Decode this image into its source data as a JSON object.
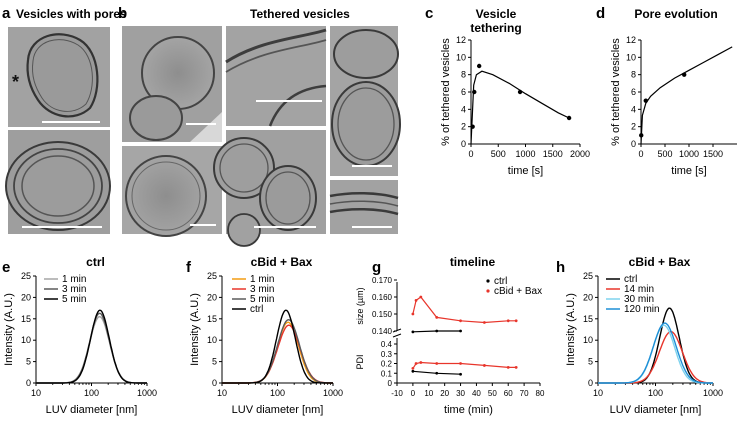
{
  "panels": {
    "a": {
      "label": "a",
      "title": "Vesicles with pores",
      "marker": "*"
    },
    "b": {
      "label": "b",
      "title": "Tethered vesicles"
    },
    "c": {
      "label": "c",
      "title_l1": "Vesicle",
      "title_l2": "tethering"
    },
    "d": {
      "label": "d",
      "title": "Pore evolution"
    },
    "e": {
      "label": "e"
    },
    "f": {
      "label": "f"
    },
    "g": {
      "label": "g"
    },
    "h": {
      "label": "h"
    }
  },
  "colors": {
    "black": "#000000",
    "dark_grey": "#5a5a5a",
    "light_grey": "#a6a6a6",
    "orange": "#f39c12",
    "red": "#e8352b",
    "light_blue": "#7fd3ee",
    "blue": "#1e8fd6",
    "micrograph": "#9b9b9b"
  },
  "chart_data": [
    {
      "id": "c",
      "type": "scatter",
      "title": "Vesicle tethering",
      "xlabel": "time [s]",
      "ylabel": "% of tethered vesicles",
      "xlim": [
        0,
        2000
      ],
      "ylim": [
        0,
        12
      ],
      "xticks": [
        0,
        500,
        1000,
        1500,
        2000
      ],
      "yticks": [
        0,
        2,
        4,
        6,
        8,
        10,
        12
      ],
      "points": {
        "x": [
          30,
          60,
          150,
          900,
          1800
        ],
        "y": [
          2,
          6,
          9,
          6,
          3
        ]
      },
      "fit_line": {
        "x": [
          0,
          50,
          100,
          200,
          400,
          700,
          1000,
          1300,
          1600,
          1800
        ],
        "y": [
          0,
          6.8,
          8.0,
          8.4,
          8.0,
          7.0,
          5.8,
          4.7,
          3.6,
          3.0
        ]
      }
    },
    {
      "id": "d",
      "type": "scatter",
      "title": "Pore evolution",
      "xlabel": "time [s]",
      "ylabel": "% of tethered vesicles",
      "xlim": [
        0,
        2000
      ],
      "ylim": [
        0,
        12
      ],
      "xticks": [
        0,
        500,
        1000,
        1500
      ],
      "yticks": [
        0,
        2,
        4,
        6,
        8,
        10,
        12
      ],
      "points": {
        "x": [
          5,
          100,
          900
        ],
        "y": [
          1,
          5,
          8
        ]
      },
      "fit_line": {
        "x": [
          0,
          30,
          100,
          200,
          400,
          700,
          1000,
          1300,
          1600,
          1900
        ],
        "y": [
          0,
          3.3,
          4.7,
          5.5,
          6.5,
          7.6,
          8.5,
          9.4,
          10.3,
          11.2
        ]
      }
    },
    {
      "id": "e",
      "type": "line",
      "title": "ctrl",
      "xlabel": "LUV diameter [nm]",
      "ylabel": "Intensity (A.U.)",
      "xscale": "log",
      "xlim": [
        10,
        1000
      ],
      "ylim": [
        0,
        25
      ],
      "xticks": [
        10,
        100,
        1000
      ],
      "yticks": [
        0,
        5,
        10,
        15,
        20,
        25
      ],
      "series": [
        {
          "name": "1 min",
          "color": "#a6a6a6",
          "mu": 140,
          "sigma": 0.18,
          "peak": 15.5
        },
        {
          "name": "3 min",
          "color": "#5a5a5a",
          "mu": 140,
          "sigma": 0.175,
          "peak": 16.3
        },
        {
          "name": "5 min",
          "color": "#000000",
          "mu": 142,
          "sigma": 0.17,
          "peak": 17.0
        }
      ]
    },
    {
      "id": "f",
      "type": "line",
      "title": "cBid + Bax",
      "xlabel": "LUV diameter [nm]",
      "ylabel": "Intensity (A.U.)",
      "xscale": "log",
      "xlim": [
        10,
        1000
      ],
      "ylim": [
        0,
        25
      ],
      "xticks": [
        10,
        100,
        1000
      ],
      "yticks": [
        0,
        5,
        10,
        15,
        20,
        25
      ],
      "series": [
        {
          "name": "1 min",
          "color": "#f39c12",
          "mu": 155,
          "sigma": 0.19,
          "peak": 14.2
        },
        {
          "name": "3 min",
          "color": "#e8352b",
          "mu": 160,
          "sigma": 0.2,
          "peak": 13.5
        },
        {
          "name": "5 min",
          "color": "#5a5a5a",
          "mu": 158,
          "sigma": 0.195,
          "peak": 14.8
        },
        {
          "name": "ctrl",
          "color": "#000000",
          "mu": 142,
          "sigma": 0.17,
          "peak": 17.0
        }
      ]
    },
    {
      "id": "g",
      "type": "line",
      "title": "timeline",
      "xlabel": "time (min)",
      "ylabel_top": "size (µm)",
      "ylabel_bottom": "PDI",
      "xlim": [
        -10,
        80
      ],
      "xticks": [
        -10,
        0,
        10,
        20,
        30,
        40,
        50,
        60,
        70,
        80
      ],
      "top_ylim": [
        0.13,
        0.17
      ],
      "top_yticks": [
        0.14,
        0.15,
        0.16,
        0.17
      ],
      "bottom_ylim": [
        0,
        0.4
      ],
      "bottom_yticks": [
        0,
        0.1,
        0.2,
        0.3,
        0.4
      ],
      "series": [
        {
          "name": "ctrl",
          "color": "#000000",
          "size": {
            "x": [
              0,
              15,
              30
            ],
            "y": [
              0.1395,
              0.14,
              0.14
            ]
          },
          "pdi": {
            "x": [
              0,
              15,
              30
            ],
            "y": [
              0.12,
              0.1,
              0.09
            ]
          }
        },
        {
          "name": "cBid + Bax",
          "color": "#e8352b",
          "size": {
            "x": [
              0,
              2,
              5,
              15,
              30,
              45,
              60,
              65
            ],
            "y": [
              0.15,
              0.158,
              0.16,
              0.148,
              0.146,
              0.145,
              0.146,
              0.146
            ]
          },
          "pdi": {
            "x": [
              0,
              2,
              5,
              15,
              30,
              45,
              60,
              65
            ],
            "y": [
              0.15,
              0.2,
              0.21,
              0.2,
              0.2,
              0.18,
              0.16,
              0.16
            ]
          }
        }
      ]
    },
    {
      "id": "h",
      "type": "line",
      "title": "cBid + Bax",
      "xlabel": "LUV diameter [nm]",
      "ylabel": "Intensity (A.U.)",
      "xscale": "log",
      "xlim": [
        10,
        1000
      ],
      "ylim": [
        0,
        25
      ],
      "xticks": [
        10,
        100,
        1000
      ],
      "yticks": [
        0,
        5,
        10,
        15,
        20,
        25
      ],
      "series": [
        {
          "name": "ctrl",
          "color": "#000000",
          "mu": 175,
          "sigma": 0.17,
          "peak": 17.5
        },
        {
          "name": "14 min",
          "color": "#e8352b",
          "mu": 185,
          "sigma": 0.2,
          "peak": 12.0
        },
        {
          "name": "30 min",
          "color": "#7fd3ee",
          "mu": 140,
          "sigma": 0.19,
          "peak": 13.5
        },
        {
          "name": "120 min",
          "color": "#1e8fd6",
          "mu": 145,
          "sigma": 0.2,
          "peak": 14.0
        }
      ]
    }
  ]
}
